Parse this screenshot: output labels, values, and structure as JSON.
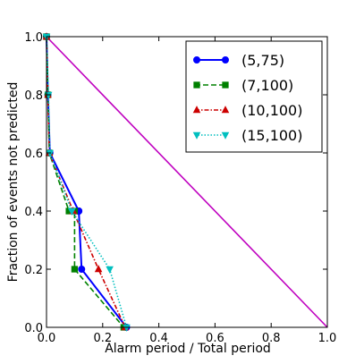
{
  "chart_data": {
    "type": "line",
    "xlabel": "Alarm period / Total period",
    "ylabel": "Fraction of events not predicted",
    "xlim": [
      0,
      1
    ],
    "ylim": [
      0,
      1
    ],
    "x_ticks": [
      "0.0",
      "0.2",
      "0.4",
      "0.6",
      "0.8",
      "1.0"
    ],
    "y_ticks": [
      "0.0",
      "0.2",
      "0.4",
      "0.6",
      "0.8",
      "1.0"
    ],
    "grid": false,
    "legend_position": "top-right",
    "reference_line": {
      "x": [
        0,
        1
      ],
      "y": [
        1,
        0
      ],
      "color": "#bf00bf"
    },
    "series": [
      {
        "name": "(5,75)",
        "color": "#0000ff",
        "marker": "circle",
        "line_style": "solid",
        "x": [
          0.0,
          0.005,
          0.012,
          0.115,
          0.115,
          0.125,
          0.285
        ],
        "y": [
          1.0,
          0.8,
          0.6,
          0.4,
          0.4,
          0.2,
          0.0
        ]
      },
      {
        "name": "(7,100)",
        "color": "#008000",
        "marker": "square",
        "line_style": "dashed",
        "x": [
          0.0,
          0.005,
          0.01,
          0.08,
          0.1,
          0.1,
          0.275
        ],
        "y": [
          1.0,
          0.8,
          0.6,
          0.4,
          0.4,
          0.2,
          0.0
        ]
      },
      {
        "name": "(10,100)",
        "color": "#cc0000",
        "marker": "triangle-up",
        "line_style": "dashdot",
        "x": [
          0.0,
          0.005,
          0.01,
          0.095,
          0.095,
          0.185,
          0.28
        ],
        "y": [
          1.0,
          0.8,
          0.6,
          0.4,
          0.4,
          0.2,
          0.0
        ]
      },
      {
        "name": "(15,100)",
        "color": "#00bfbf",
        "marker": "triangle-down",
        "line_style": "dotted",
        "x": [
          0.0,
          0.007,
          0.012,
          0.09,
          0.09,
          0.225,
          0.285
        ],
        "y": [
          1.0,
          0.8,
          0.6,
          0.4,
          0.4,
          0.2,
          0.0
        ]
      }
    ]
  }
}
